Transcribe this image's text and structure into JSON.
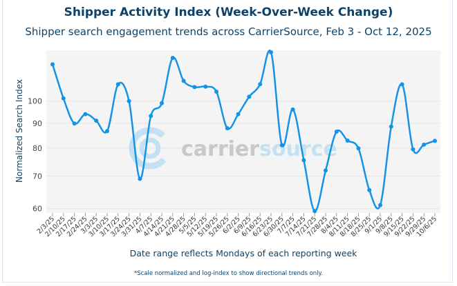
{
  "chart_data": {
    "type": "line",
    "title": "Shipper Activity Index (Week-Over-Week Change)",
    "subtitle": "Shipper search engagement trends across CarrierSource, Feb 3 - Oct 12, 2025",
    "xlabel": "Date range reflects Mondays of each reporting week",
    "ylabel": "Normalized Search Index",
    "note": "*Scale normalized and log-index to show directional trends only.",
    "yscale": "log",
    "ylim": [
      59,
      128
    ],
    "yticks": [
      60,
      70,
      80,
      90,
      100
    ],
    "grid": true,
    "watermark": "carriersource",
    "categories": [
      "2/3/25",
      "2/10/25",
      "2/17/25",
      "2/24/25",
      "3/3/25",
      "3/10/25",
      "3/17/25",
      "3/24/25",
      "3/31/25",
      "4/7/25",
      "4/14/25",
      "4/21/25",
      "4/28/25",
      "5/5/25",
      "5/12/25",
      "5/19/25",
      "5/26/25",
      "6/2/25",
      "6/9/25",
      "6/16/25",
      "6/23/25",
      "6/30/25",
      "7/7/25",
      "7/14/25",
      "7/21/25",
      "7/28/25",
      "8/4/25",
      "8/11/25",
      "8/18/25",
      "8/25/25",
      "9/1/25",
      "9/8/25",
      "9/15/25",
      "9/22/25",
      "9/29/25",
      "10/6/25"
    ],
    "series": [
      {
        "name": "Normalized Search Index",
        "color": "#1493e6",
        "values": [
          119.1,
          101.3,
          89.9,
          94.0,
          91.1,
          86.7,
          108.3,
          100.0,
          69.1,
          93.2,
          99.0,
          122.8,
          110.1,
          106.9,
          107.1,
          104.6,
          87.9,
          94.0,
          102.1,
          108.4,
          126.1,
          81.1,
          96.1,
          75.5,
          59.3,
          71.9,
          86.5,
          82.9,
          79.9,
          65.5,
          61.0,
          88.6,
          108.3,
          79.5,
          81.3,
          82.8
        ]
      }
    ]
  }
}
